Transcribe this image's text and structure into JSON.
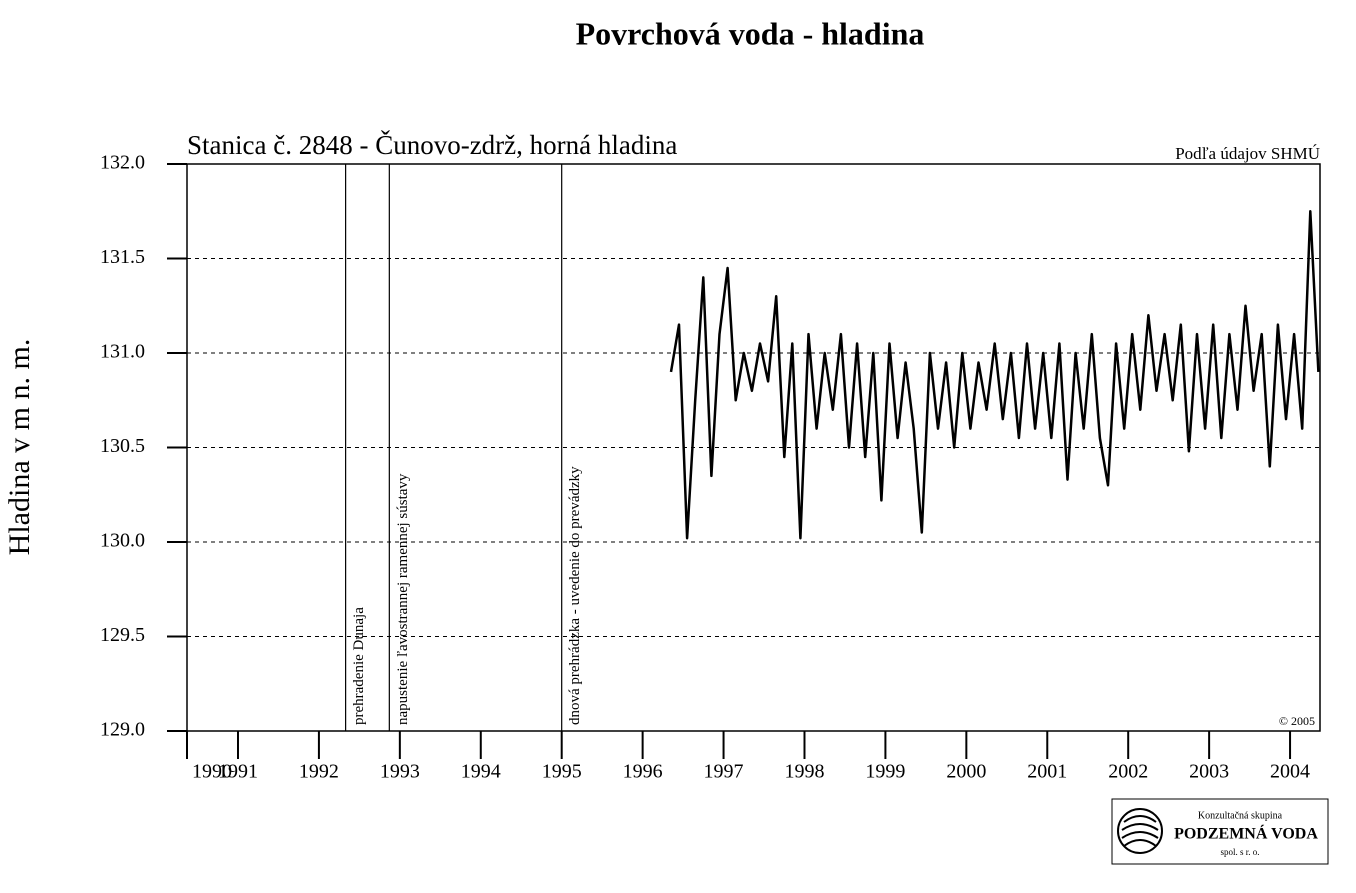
{
  "chart_data": {
    "type": "line",
    "title": "Povrchová voda - hladina",
    "subtitle": "Stanica č. 2848 - Čunovo-zdrž, horná hladina",
    "source": "Podľa údajov SHMÚ",
    "copyright": "© 2005",
    "y_label": "Hladina v m n. m.",
    "color": "#000000",
    "grid": true,
    "xlim": [
      1990.37,
      2004.37
    ],
    "xticks": [
      {
        "value": 1990.37,
        "label": "1990"
      },
      1991,
      1992,
      1993,
      1994,
      1995,
      1996,
      1997,
      1998,
      1999,
      2000,
      2001,
      2002,
      2003,
      2004
    ],
    "ylim": [
      129.0,
      132.0
    ],
    "yticks": [
      {
        "value": 129.0,
        "label": "129.0"
      },
      129.5,
      {
        "value": 130.0,
        "label": "130.0"
      },
      130.5,
      {
        "value": 131.0,
        "label": "131.0"
      },
      131.5,
      {
        "value": 132.0,
        "label": "132.0"
      }
    ],
    "annotations": [
      {
        "x": 1992.33,
        "text": "prehradenie Dunaja"
      },
      {
        "x": 1992.87,
        "text": "napustenie ľavostrannej ramennej sústavy"
      },
      {
        "x": 1995.0,
        "text": "dnová prehrádzka - uvedenie do prevádzky"
      }
    ],
    "x": [
      1996.35,
      1996.45,
      1996.55,
      1996.65,
      1996.75,
      1996.85,
      1996.95,
      1997.05,
      1997.15,
      1997.25,
      1997.35,
      1997.45,
      1997.55,
      1997.65,
      1997.75,
      1997.85,
      1997.95,
      1998.05,
      1998.15,
      1998.25,
      1998.35,
      1998.45,
      1998.55,
      1998.65,
      1998.75,
      1998.85,
      1998.95,
      1999.05,
      1999.15,
      1999.25,
      1999.35,
      1999.45,
      1999.55,
      1999.65,
      1999.75,
      1999.85,
      1999.95,
      2000.05,
      2000.15,
      2000.25,
      2000.35,
      2000.45,
      2000.55,
      2000.65,
      2000.75,
      2000.85,
      2000.95,
      2001.05,
      2001.15,
      2001.25,
      2001.35,
      2001.45,
      2001.55,
      2001.65,
      2001.75,
      2001.85,
      2001.95,
      2002.05,
      2002.15,
      2002.25,
      2002.35,
      2002.45,
      2002.55,
      2002.65,
      2002.75,
      2002.85,
      2002.95,
      2003.05,
      2003.15,
      2003.25,
      2003.35,
      2003.45,
      2003.55,
      2003.65,
      2003.75,
      2003.85,
      2003.95,
      2004.05,
      2004.15,
      2004.25,
      2004.35
    ],
    "values": [
      130.9,
      131.15,
      130.02,
      130.75,
      131.4,
      130.35,
      131.1,
      131.45,
      130.75,
      131.0,
      130.8,
      131.05,
      130.85,
      131.3,
      130.45,
      131.05,
      130.02,
      131.1,
      130.6,
      131.0,
      130.7,
      131.1,
      130.5,
      131.05,
      130.45,
      131.0,
      130.22,
      131.05,
      130.55,
      130.95,
      130.6,
      130.05,
      131.0,
      130.6,
      130.95,
      130.5,
      131.0,
      130.6,
      130.95,
      130.7,
      131.05,
      130.65,
      131.0,
      130.55,
      131.05,
      130.6,
      131.0,
      130.55,
      131.05,
      130.33,
      131.0,
      130.6,
      131.1,
      130.55,
      130.3,
      131.05,
      130.6,
      131.1,
      130.7,
      131.2,
      130.8,
      131.1,
      130.75,
      131.15,
      130.48,
      131.1,
      130.6,
      131.15,
      130.55,
      131.1,
      130.7,
      131.25,
      130.8,
      131.1,
      130.4,
      131.15,
      130.65,
      131.1,
      130.6,
      131.75,
      130.9
    ]
  },
  "logo": {
    "line1": "Konzultačná skupina",
    "line2": "PODZEMNÁ VODA",
    "line3": "spol. s r. o."
  }
}
